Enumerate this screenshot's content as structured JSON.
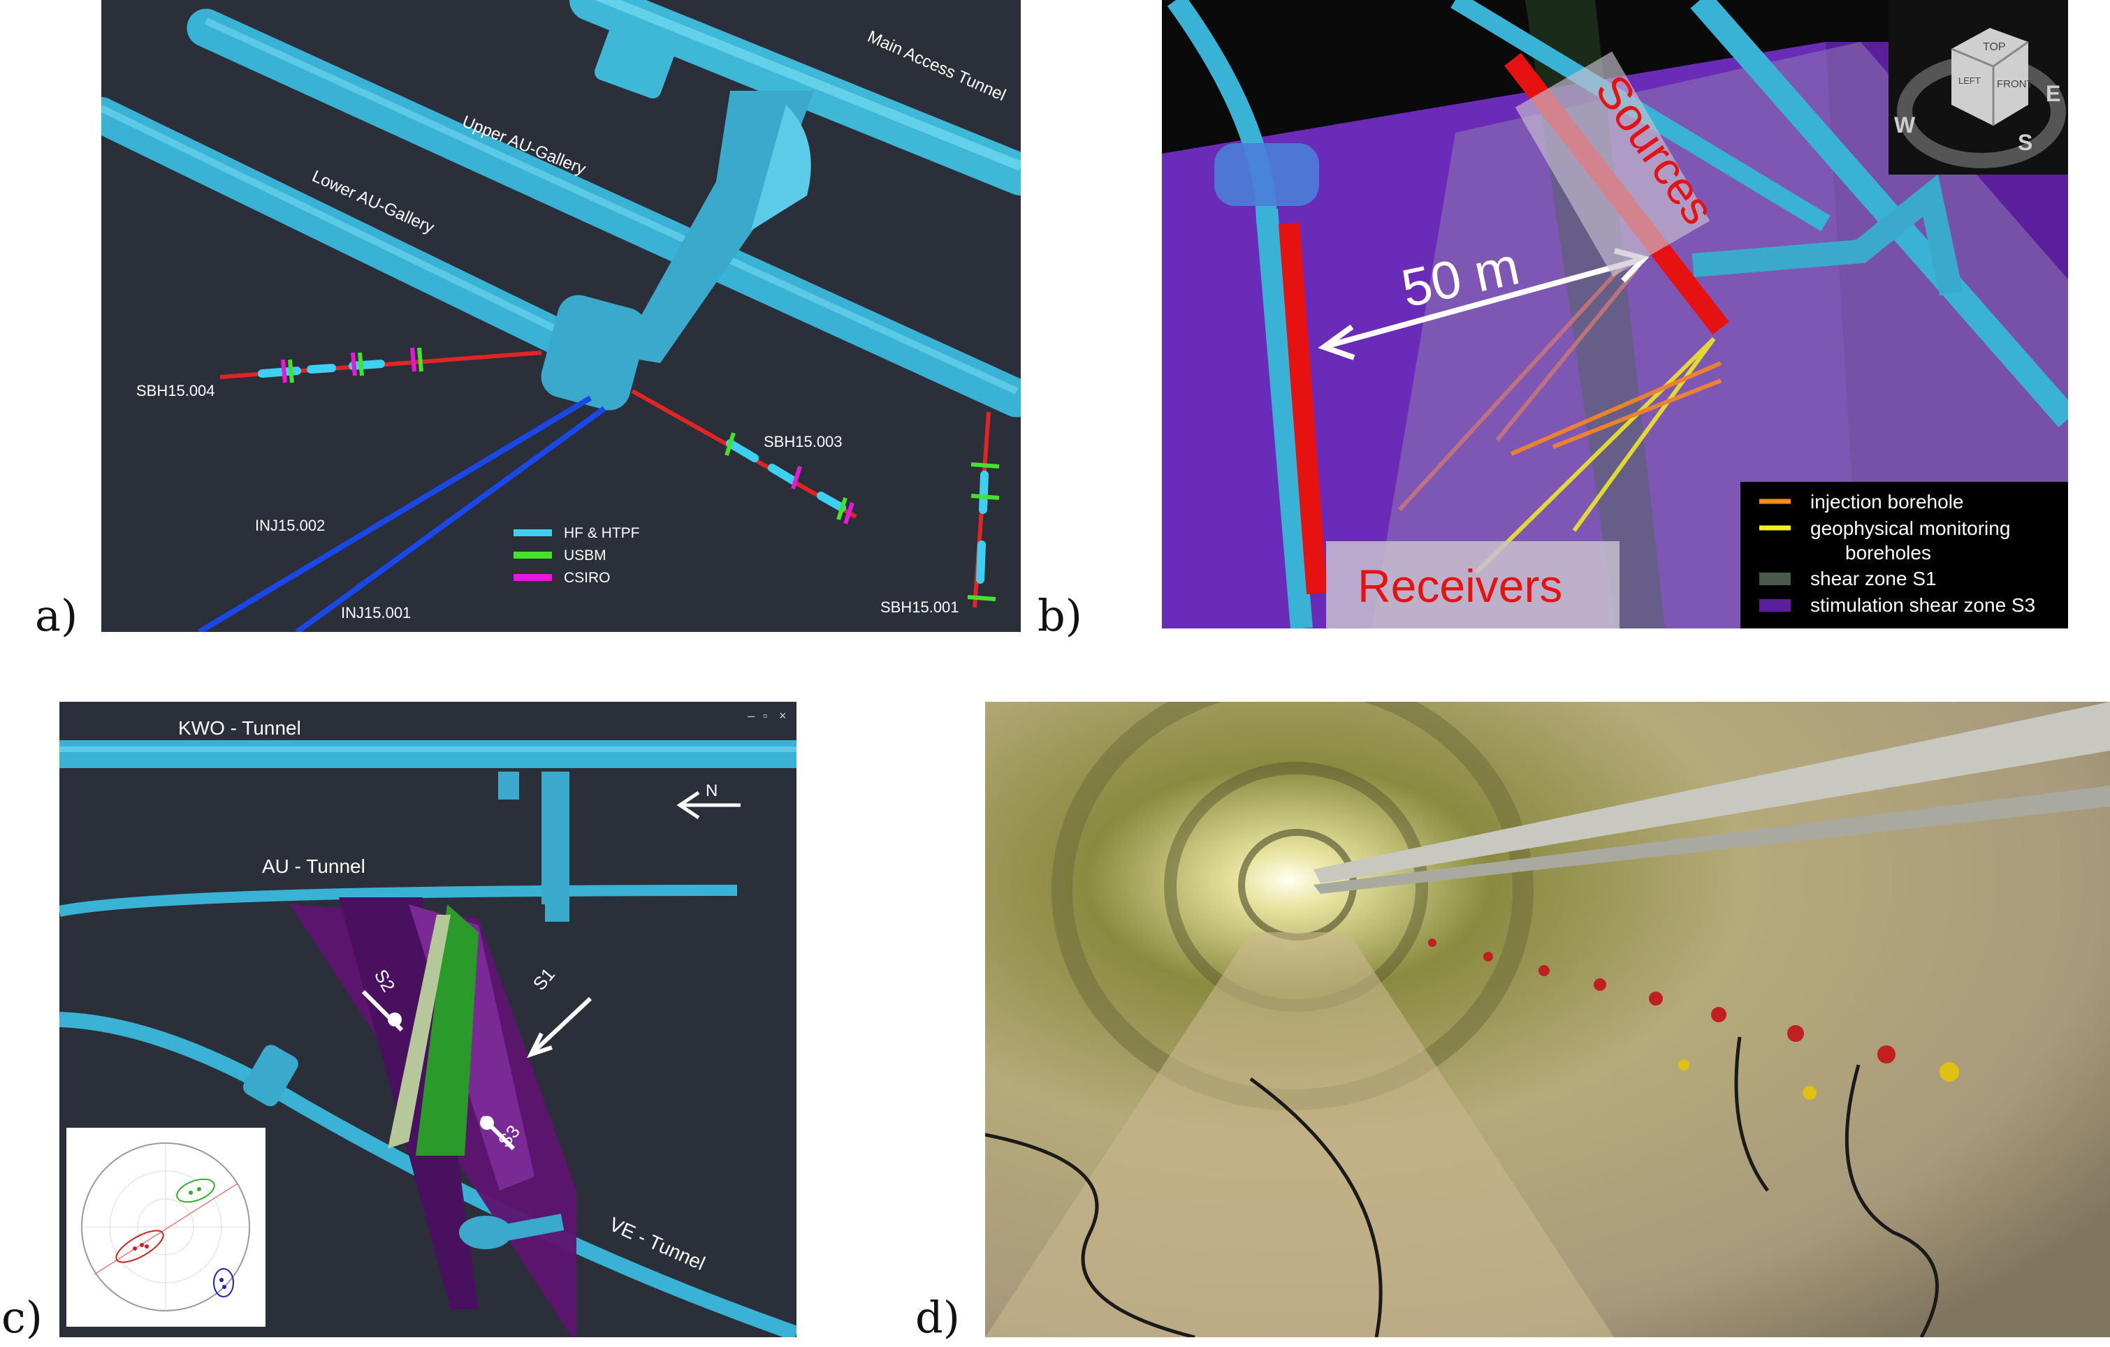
{
  "panel_labels": {
    "a": "a)",
    "b": "b)",
    "c": "c)",
    "d": "d)"
  },
  "panel_a": {
    "tunnel_labels": [
      "Main Access Tunnel",
      "Upper AU-Gallery",
      "Lower AU-Gallery"
    ],
    "boreholes": [
      "SBH15.004",
      "SBH15.003",
      "SBH15.001",
      "INJ15.002",
      "INJ15.001"
    ],
    "legend": [
      {
        "label": "HF & HTPF",
        "color": "#3dd0f0"
      },
      {
        "label": "USBM",
        "color": "#47e02a"
      },
      {
        "label": "CSIRO",
        "color": "#e41ad8"
      }
    ]
  },
  "panel_b": {
    "sources_label": "Sources",
    "receivers_label": "Receivers",
    "distance_label": "50 m",
    "compass": {
      "top": "TOP",
      "left": "LEFT",
      "front": "FRONT",
      "w": "W",
      "s": "S",
      "e": "E"
    },
    "legend": [
      {
        "label": "injection borehole",
        "color": "#ff8a1c"
      },
      {
        "label": "geophysical monitoring",
        "label2": "boreholes",
        "color": "#f4f020"
      },
      {
        "label": "shear zone S1",
        "color": "#4a5a4a"
      },
      {
        "label": "stimulation shear zone S3",
        "color": "#5b1e9c"
      }
    ]
  },
  "panel_c": {
    "tunnel_labels": [
      "KWO - Tunnel",
      "AU - Tunnel",
      "VE - Tunnel"
    ],
    "north_label": "N",
    "shear_zones": [
      "S1",
      "S2",
      "S3"
    ],
    "window_controls": [
      "–",
      "▫",
      "×"
    ]
  },
  "panel_d": {
    "image": "tunnel-photograph"
  }
}
